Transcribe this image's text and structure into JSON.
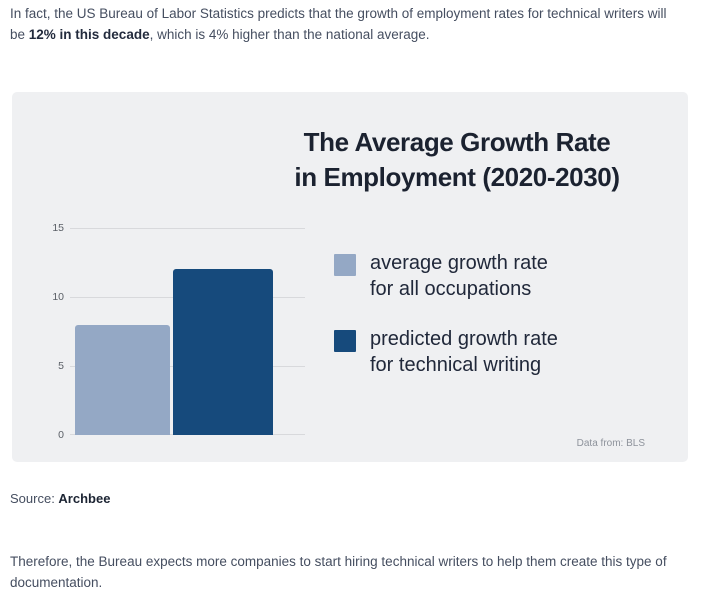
{
  "intro_paragraph": {
    "before_bold": "In fact, the US Bureau of Labor Statistics predicts that the growth of employment rates for technical writers will be ",
    "bold": "12% in this decade",
    "after_bold": ", which is 4% higher than the national average."
  },
  "chart_card": {
    "title_line1": "The Average Growth Rate",
    "title_line2": "in Employment (2020-2030)",
    "attribution": "Data from: BLS",
    "background": "#eff0f2"
  },
  "chart_data": {
    "type": "bar",
    "title": "The Average Growth Rate in Employment (2020-2030)",
    "categories": [
      "average growth rate for all occupations",
      "predicted growth rate for technical writing"
    ],
    "values": [
      8,
      12
    ],
    "bar_colors": [
      "#94a8c5",
      "#164a7c"
    ],
    "ylim": [
      0,
      15
    ],
    "yticks": [
      15,
      10,
      5,
      0
    ],
    "xlabel": "",
    "ylabel": "",
    "grid": true,
    "legend_position": "right",
    "annotation": "Data from: BLS"
  },
  "legend": {
    "items": [
      {
        "line1": "average growth rate",
        "line2": "for all occupations",
        "color": "#94a8c5"
      },
      {
        "line1": "predicted growth rate",
        "line2": "for technical writing",
        "color": "#164a7c"
      }
    ]
  },
  "source_line": {
    "label": "Source: ",
    "link_text": "Archbee"
  },
  "closing_paragraph": "Therefore, the Bureau expects more companies to start hiring technical writers to help them create this type of documentation."
}
